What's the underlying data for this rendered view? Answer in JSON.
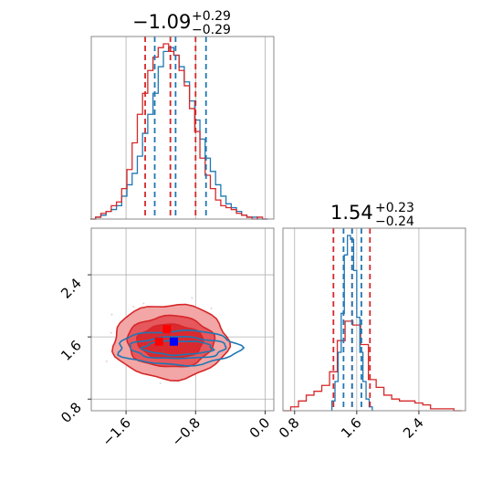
{
  "chart_data": [
    {
      "type": "corner",
      "title_top": {
        "median": "−1.09",
        "plus": "+0.29",
        "minus": "−0.29"
      },
      "title_right": {
        "median": "1.54",
        "plus": "+0.23",
        "minus": "−0.24"
      },
      "panel_top": {
        "type": "histogram",
        "xlim": [
          -2.0,
          0.1
        ],
        "grid": true,
        "red_quantiles": [
          -1.38,
          -1.09,
          -0.8
        ],
        "blue_quantiles": [
          -1.27,
          -1.03,
          -0.68
        ],
        "red_series": {
          "x": [
            -1.98,
            -1.92,
            -1.86,
            -1.8,
            -1.74,
            -1.68,
            -1.62,
            -1.56,
            -1.5,
            -1.44,
            -1.38,
            -1.32,
            -1.26,
            -1.2,
            -1.14,
            -1.08,
            -1.02,
            -0.96,
            -0.9,
            -0.84,
            -0.78,
            -0.72,
            -0.66,
            -0.6,
            -0.54,
            -0.48,
            -0.42,
            -0.36,
            -0.3,
            -0.24,
            -0.18,
            -0.12,
            -0.06,
            0.0
          ],
          "values": [
            0.0,
            0.01,
            0.03,
            0.04,
            0.07,
            0.09,
            0.16,
            0.26,
            0.4,
            0.55,
            0.66,
            0.78,
            0.85,
            0.9,
            0.92,
            0.88,
            0.86,
            0.78,
            0.7,
            0.58,
            0.46,
            0.32,
            0.23,
            0.16,
            0.1,
            0.07,
            0.06,
            0.05,
            0.03,
            0.02,
            0.01,
            0.0,
            0.01,
            0.0
          ]
        },
        "blue_series": {
          "x": [
            -1.98,
            -1.92,
            -1.86,
            -1.8,
            -1.74,
            -1.68,
            -1.62,
            -1.56,
            -1.5,
            -1.44,
            -1.38,
            -1.32,
            -1.26,
            -1.2,
            -1.14,
            -1.08,
            -1.02,
            -0.96,
            -0.9,
            -0.84,
            -0.78,
            -0.72,
            -0.66,
            -0.6,
            -0.54,
            -0.48,
            -0.42,
            -0.36,
            -0.3,
            -0.24,
            -0.18,
            -0.12,
            -0.06,
            0.0
          ],
          "values": [
            0.0,
            0.01,
            0.02,
            0.04,
            0.05,
            0.07,
            0.12,
            0.18,
            0.24,
            0.33,
            0.45,
            0.55,
            0.66,
            0.8,
            0.88,
            0.9,
            0.86,
            0.8,
            0.72,
            0.62,
            0.52,
            0.42,
            0.32,
            0.25,
            0.18,
            0.12,
            0.08,
            0.06,
            0.04,
            0.02,
            0.01,
            0.01,
            0.0,
            0.0
          ]
        }
      },
      "panel_corner": {
        "type": "2d-contour",
        "xlim": [
          -2.0,
          0.1
        ],
        "ylim": [
          0.65,
          3.0
        ],
        "xticks": [
          -1.6,
          -0.8,
          0.0
        ],
        "xtick_labels": [
          "−1.6",
          "−0.8",
          "0.0"
        ],
        "yticks": [
          0.8,
          1.6,
          2.4
        ],
        "ytick_labels": [
          "0.8",
          "1.6",
          "2.4"
        ],
        "grid": true,
        "red_center": [
          -1.09,
          1.54
        ],
        "red_regions": [
          {
            "sx": 0.66,
            "sy": 0.48,
            "fill": "#f2a6a6",
            "stroke": "#d62728"
          },
          {
            "sx": 0.5,
            "sy": 0.33,
            "fill": "#e5585d",
            "stroke": "#d62728"
          },
          {
            "sx": 0.38,
            "sy": 0.22,
            "fill": "#da2a2f",
            "stroke": "#d62728"
          }
        ],
        "blue_center": [
          -1.0,
          1.46
        ],
        "blue_regions": [
          {
            "sx": 0.7,
            "sy": 0.22
          },
          {
            "sx": 0.55,
            "sy": 0.14
          },
          {
            "sx": 0.4,
            "sy": 0.09
          }
        ],
        "markers": [
          {
            "x": -1.13,
            "y": 1.7,
            "color": "#ff0000"
          },
          {
            "x": -1.22,
            "y": 1.54,
            "color": "#ff0000"
          },
          {
            "x": -1.05,
            "y": 1.54,
            "color": "#0000ff"
          }
        ]
      },
      "panel_right": {
        "type": "histogram",
        "xlim": [
          0.65,
          3.0
        ],
        "xticks": [
          0.8,
          1.6,
          2.4
        ],
        "xtick_labels": [
          "0.8",
          "1.6",
          "2.4"
        ],
        "grid": true,
        "red_quantiles": [
          1.3,
          1.54,
          1.77
        ],
        "blue_quantiles": [
          1.43,
          1.54,
          1.66
        ],
        "red_series": {
          "x": [
            0.7,
            0.8,
            0.9,
            1.0,
            1.1,
            1.2,
            1.3,
            1.4,
            1.5,
            1.6,
            1.7,
            1.8,
            1.9,
            2.0,
            2.1,
            2.2,
            2.3,
            2.4,
            2.5,
            2.6,
            2.7,
            2.8,
            2.9
          ],
          "values": [
            0.0,
            0.02,
            0.05,
            0.08,
            0.1,
            0.13,
            0.2,
            0.36,
            0.46,
            0.44,
            0.34,
            0.16,
            0.12,
            0.08,
            0.06,
            0.05,
            0.05,
            0.04,
            0.03,
            0.01,
            0.01,
            0.01,
            0.0
          ]
        },
        "blue_series": {
          "x": [
            1.3,
            1.34,
            1.38,
            1.42,
            1.46,
            1.5,
            1.54,
            1.58,
            1.62,
            1.66,
            1.7,
            1.74,
            1.78
          ],
          "values": [
            0.05,
            0.15,
            0.3,
            0.5,
            0.8,
            0.9,
            0.88,
            0.72,
            0.48,
            0.3,
            0.15,
            0.06,
            0.02
          ]
        }
      },
      "colors": {
        "red": "#d62728",
        "blue": "#1f77b4",
        "grid": "#b0b0b0",
        "frame": "#888888"
      }
    }
  ]
}
